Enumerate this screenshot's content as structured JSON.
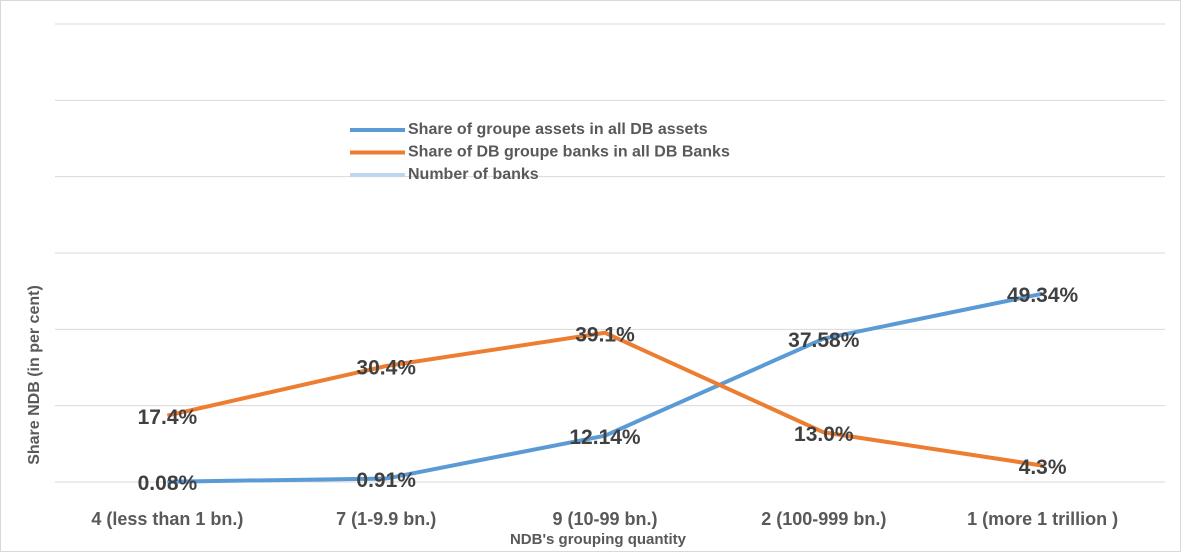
{
  "chart_data": {
    "type": "line",
    "categories": [
      "4 (less than 1 bn.)",
      "7 (1-9.9 bn.)",
      "9 (10-99 bn.)",
      "2 (100-999 bn.)",
      "1 (more 1 trillion )"
    ],
    "series": [
      {
        "name": "Share of groupe assets in all DB assets",
        "color": "#5b9bd5",
        "values": [
          0.08,
          0.91,
          12.14,
          37.58,
          49.34
        ],
        "value_labels": [
          "0.08%",
          "0.91%",
          "12.14%",
          "37.58%",
          "49.34%"
        ]
      },
      {
        "name": "Share of  DB groupe banks in all DB Banks",
        "color": "#ed7d31",
        "values": [
          17.4,
          30.4,
          39.1,
          13.0,
          4.3
        ],
        "value_labels": [
          "17.4%",
          "30.4%",
          "39.1%",
          "13.0%",
          "4.3%"
        ]
      },
      {
        "name": "Number of banks",
        "color": "#bdd7ee",
        "values": [
          null,
          null,
          null,
          null,
          null
        ]
      }
    ],
    "ylabel": "Share NDB (in per cent)",
    "xlabel": "NDB's grouping quantity",
    "ylim": [
      0,
      120
    ],
    "yticks": [
      0,
      20,
      40,
      60,
      80,
      100,
      120
    ],
    "grid": true
  }
}
